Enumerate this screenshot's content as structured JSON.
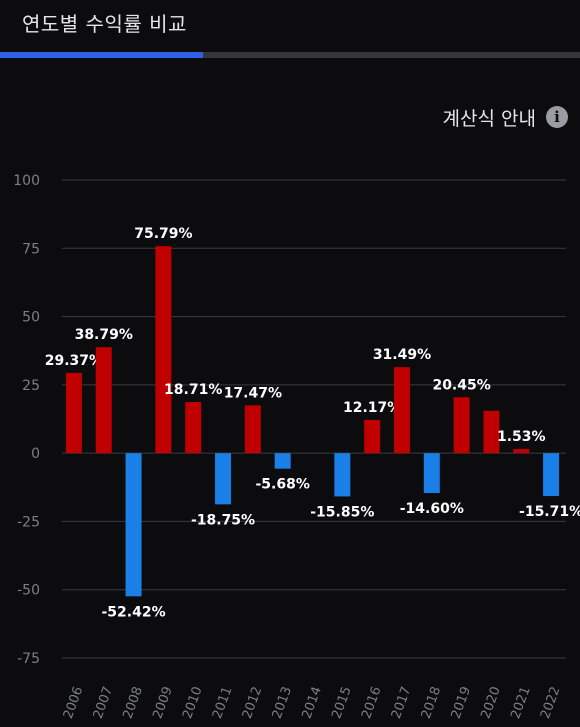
{
  "header": {
    "title": "연도별 수익률 비교",
    "progress": 0.35
  },
  "calc_guide": {
    "label": "계산식 안내",
    "icon": "info-icon"
  },
  "colors": {
    "positive": "#c00000",
    "negative": "#1a7fe6",
    "accent": "#2f5fe8",
    "grid": "#3a3b40",
    "axis_text": "#7d7f85",
    "label_text": "#ffffff"
  },
  "chart_data": {
    "type": "bar",
    "title": "",
    "xlabel": "",
    "ylabel": "",
    "ylim": [
      -75,
      100
    ],
    "yticks": [
      100,
      75,
      50,
      25,
      0,
      -25,
      -50,
      -75
    ],
    "grid": true,
    "categories": [
      "2006",
      "2007",
      "2008",
      "2009",
      "2010",
      "2011",
      "2012",
      "2013",
      "2014",
      "2015",
      "2016",
      "2017",
      "2018",
      "2019",
      "2020",
      "2021",
      "2022"
    ],
    "values": [
      29.37,
      38.79,
      -52.42,
      75.79,
      18.71,
      -18.75,
      17.47,
      -5.68,
      null,
      -15.85,
      12.17,
      31.49,
      -14.6,
      20.45,
      15.5,
      1.53,
      -15.71
    ],
    "data_labels": [
      "29.37%",
      "38.79%",
      "-52.42%",
      "75.79%",
      "18.71%",
      "-18.75%",
      "17.47%",
      "-5.68%",
      "",
      "-15.85%",
      "12.17%",
      "31.49%",
      "-14.60%",
      "20.45%",
      "",
      "1.53%",
      "-15.71%"
    ]
  }
}
